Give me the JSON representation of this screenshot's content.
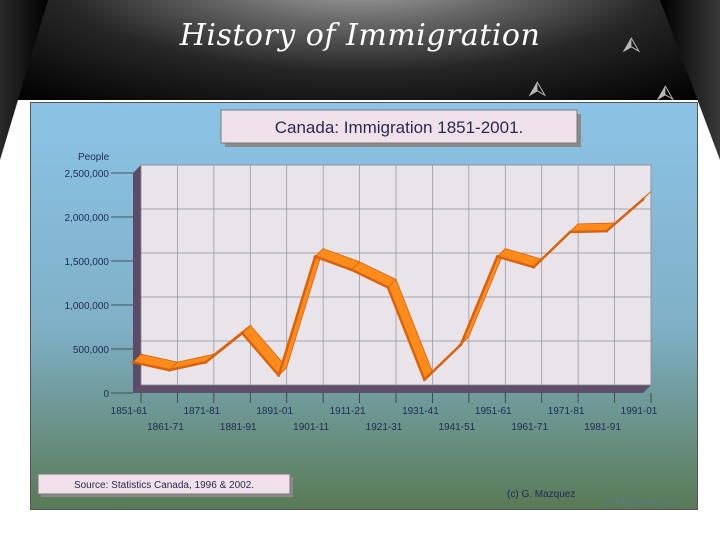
{
  "slide": {
    "title": "History of Immigration"
  },
  "icons": [
    "up-arrow-circle-icon",
    "up-arrow-circle-icon",
    "up-arrow-circle-icon"
  ],
  "chart_data": {
    "type": "line",
    "title": "Canada: Immigration 1851-2001.",
    "ylabel": "People",
    "xlabel": "",
    "ylim": [
      0,
      2500000
    ],
    "yticks": [
      "0",
      "500,000",
      "1,000,000",
      "1,500,000",
      "2,000,000",
      "2,500,000"
    ],
    "categories": [
      "1851-61",
      "1861-71",
      "1871-81",
      "1881-91",
      "1891-01",
      "1901-11",
      "1911-21",
      "1921-31",
      "1931-41",
      "1941-51",
      "1951-61",
      "1961-71",
      "1971-81",
      "1981-91",
      "1991-01"
    ],
    "series": [
      {
        "values": [
          350000,
          260000,
          350000,
          680000,
          200000,
          1550000,
          1400000,
          1200000,
          150000,
          550000,
          1550000,
          1430000,
          1830000,
          1840000,
          2200000
        ]
      }
    ],
    "grid": true,
    "colors": {
      "line": "#ff8c1a",
      "line_dark": "#d9620f",
      "background_top": "#8cc3e6",
      "background_bottom": "#597a56",
      "plot": "#e8e4ea",
      "floor": "#5e4f6c"
    },
    "source": "Source: Statistics Canada, 1996 & 2002.",
    "credit": "(c) G. Mazquez",
    "watermark": "© PopChart.com"
  }
}
